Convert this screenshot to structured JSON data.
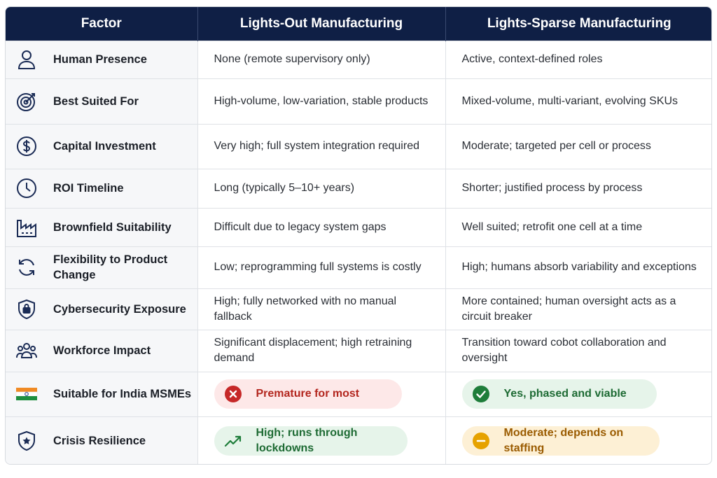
{
  "header": {
    "col1": "Factor",
    "col2": "Lights-Out Manufacturing",
    "col3": "Lights-Sparse Manufacturing"
  },
  "rows": [
    {
      "icon": "person-icon",
      "factor": "Human Presence",
      "lights_out": "None (remote supervisory only)",
      "lights_sparse": "Active, context-defined roles"
    },
    {
      "icon": "target-icon",
      "factor": "Best Suited For",
      "lights_out": "High-volume, low-variation, stable products",
      "lights_sparse": "Mixed-volume, multi-variant, evolving SKUs"
    },
    {
      "icon": "dollar-icon",
      "factor": "Capital Investment",
      "lights_out": "Very high; full system integration required",
      "lights_sparse": "Moderate; targeted per cell or process"
    },
    {
      "icon": "clock-icon",
      "factor": "ROI Timeline",
      "lights_out": "Long (typically 5–10+ years)",
      "lights_sparse": "Shorter; justified process by process"
    },
    {
      "icon": "factory-icon",
      "factor": "Brownfield Suitability",
      "lights_out": "Difficult due to legacy system gaps",
      "lights_sparse": "Well suited; retrofit one cell at a time"
    },
    {
      "icon": "refresh-icon",
      "factor": "Flexibility to Product Change",
      "lights_out": "Low; reprogramming full systems is costly",
      "lights_sparse": "High; humans absorb variability and exceptions"
    },
    {
      "icon": "shield-lock-icon",
      "factor": "Cybersecurity Exposure",
      "lights_out": "High; fully networked with no manual fallback",
      "lights_sparse": "More contained; human oversight acts as a circuit breaker"
    },
    {
      "icon": "people-icon",
      "factor": "Workforce Impact",
      "lights_out": "Significant displacement; high retraining demand",
      "lights_sparse": "Transition toward cobot collaboration and oversight"
    },
    {
      "icon": "india-flag-icon",
      "factor": "Suitable for India MSMEs",
      "lights_out": "Premature for most",
      "lights_sparse": "Yes, phased and viable"
    },
    {
      "icon": "shield-star-icon",
      "factor": "Crisis Resilience",
      "lights_out": "High; runs through lockdowns",
      "lights_sparse": "Moderate; depends on staffing"
    }
  ],
  "colors": {
    "header_bg": "#0f1f45",
    "icon_navy": "#1a2b55",
    "bad": "#c62828",
    "good": "#1e7d3a",
    "warn": "#e6a200"
  }
}
